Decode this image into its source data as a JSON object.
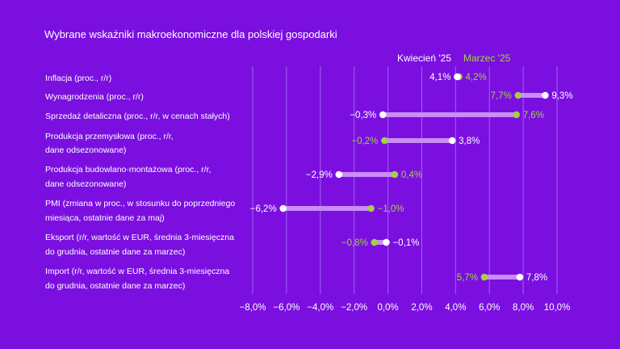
{
  "chart_data": {
    "type": "dumbbell",
    "title": "Wybrane wskaźniki makroekonomiczne dla polskiej gospodarki",
    "legend": [
      "Kwiecień '25",
      "Marzec '25"
    ],
    "colors": {
      "april": "#ffffff",
      "march": "#a3d046",
      "bar": "#c98df7",
      "grid": "#a061ee",
      "background": "#7b0fe0"
    },
    "xlim": [
      -8,
      10
    ],
    "ticks": [
      "−8,0%",
      "−6,0%",
      "−4,0%",
      "−2,0%",
      "0,0%",
      "2,0%",
      "4,0%",
      "6,0%",
      "8,0%",
      "10,0%"
    ],
    "tick_values": [
      -8,
      -6,
      -4,
      -2,
      0,
      2,
      4,
      6,
      8,
      10
    ],
    "categories": [
      [
        "Inflacja (proc., r/r)"
      ],
      [
        "Wynagrodzenia (proc., r/r)"
      ],
      [
        "Sprzedaż detaliczna (proc., r/r, w cenach stałych)"
      ],
      [
        "Produkcja przemysłowa (proc., r/r,",
        "dane odsezonowane)"
      ],
      [
        "Produkcja budowlano-montażowa (proc., r/r,",
        "dane odsezonowane)"
      ],
      [
        "PMI (zmiana w proc., w stosunku do poprzedniego",
        "miesiąca, ostatnie dane za maj)"
      ],
      [
        "Eksport (r/r, wartość w EUR, średnia 3-miesięczna",
        "do grudnia, ostatnie dane za marzec)"
      ],
      [
        "Import (r/r, wartość w EUR, średnia 3-miesięczna",
        "do grudnia, ostatnie dane za marzec)"
      ]
    ],
    "april": [
      4.1,
      9.3,
      -0.3,
      3.8,
      -2.9,
      -6.2,
      -0.1,
      7.8
    ],
    "march": [
      4.2,
      7.7,
      7.6,
      -0.2,
      0.4,
      -1.0,
      -0.8,
      5.7
    ],
    "april_labels": [
      "4,1%",
      "9,3%",
      "−0,3%",
      "3,8%",
      "−2,9%",
      "−6,2%",
      "−0,1%",
      "7,8%"
    ],
    "march_labels": [
      "4,2%",
      "7,7%",
      "7,6%",
      "−0,2%",
      "0,4%",
      "−1,0%",
      "−0,8%",
      "5,7%"
    ]
  }
}
